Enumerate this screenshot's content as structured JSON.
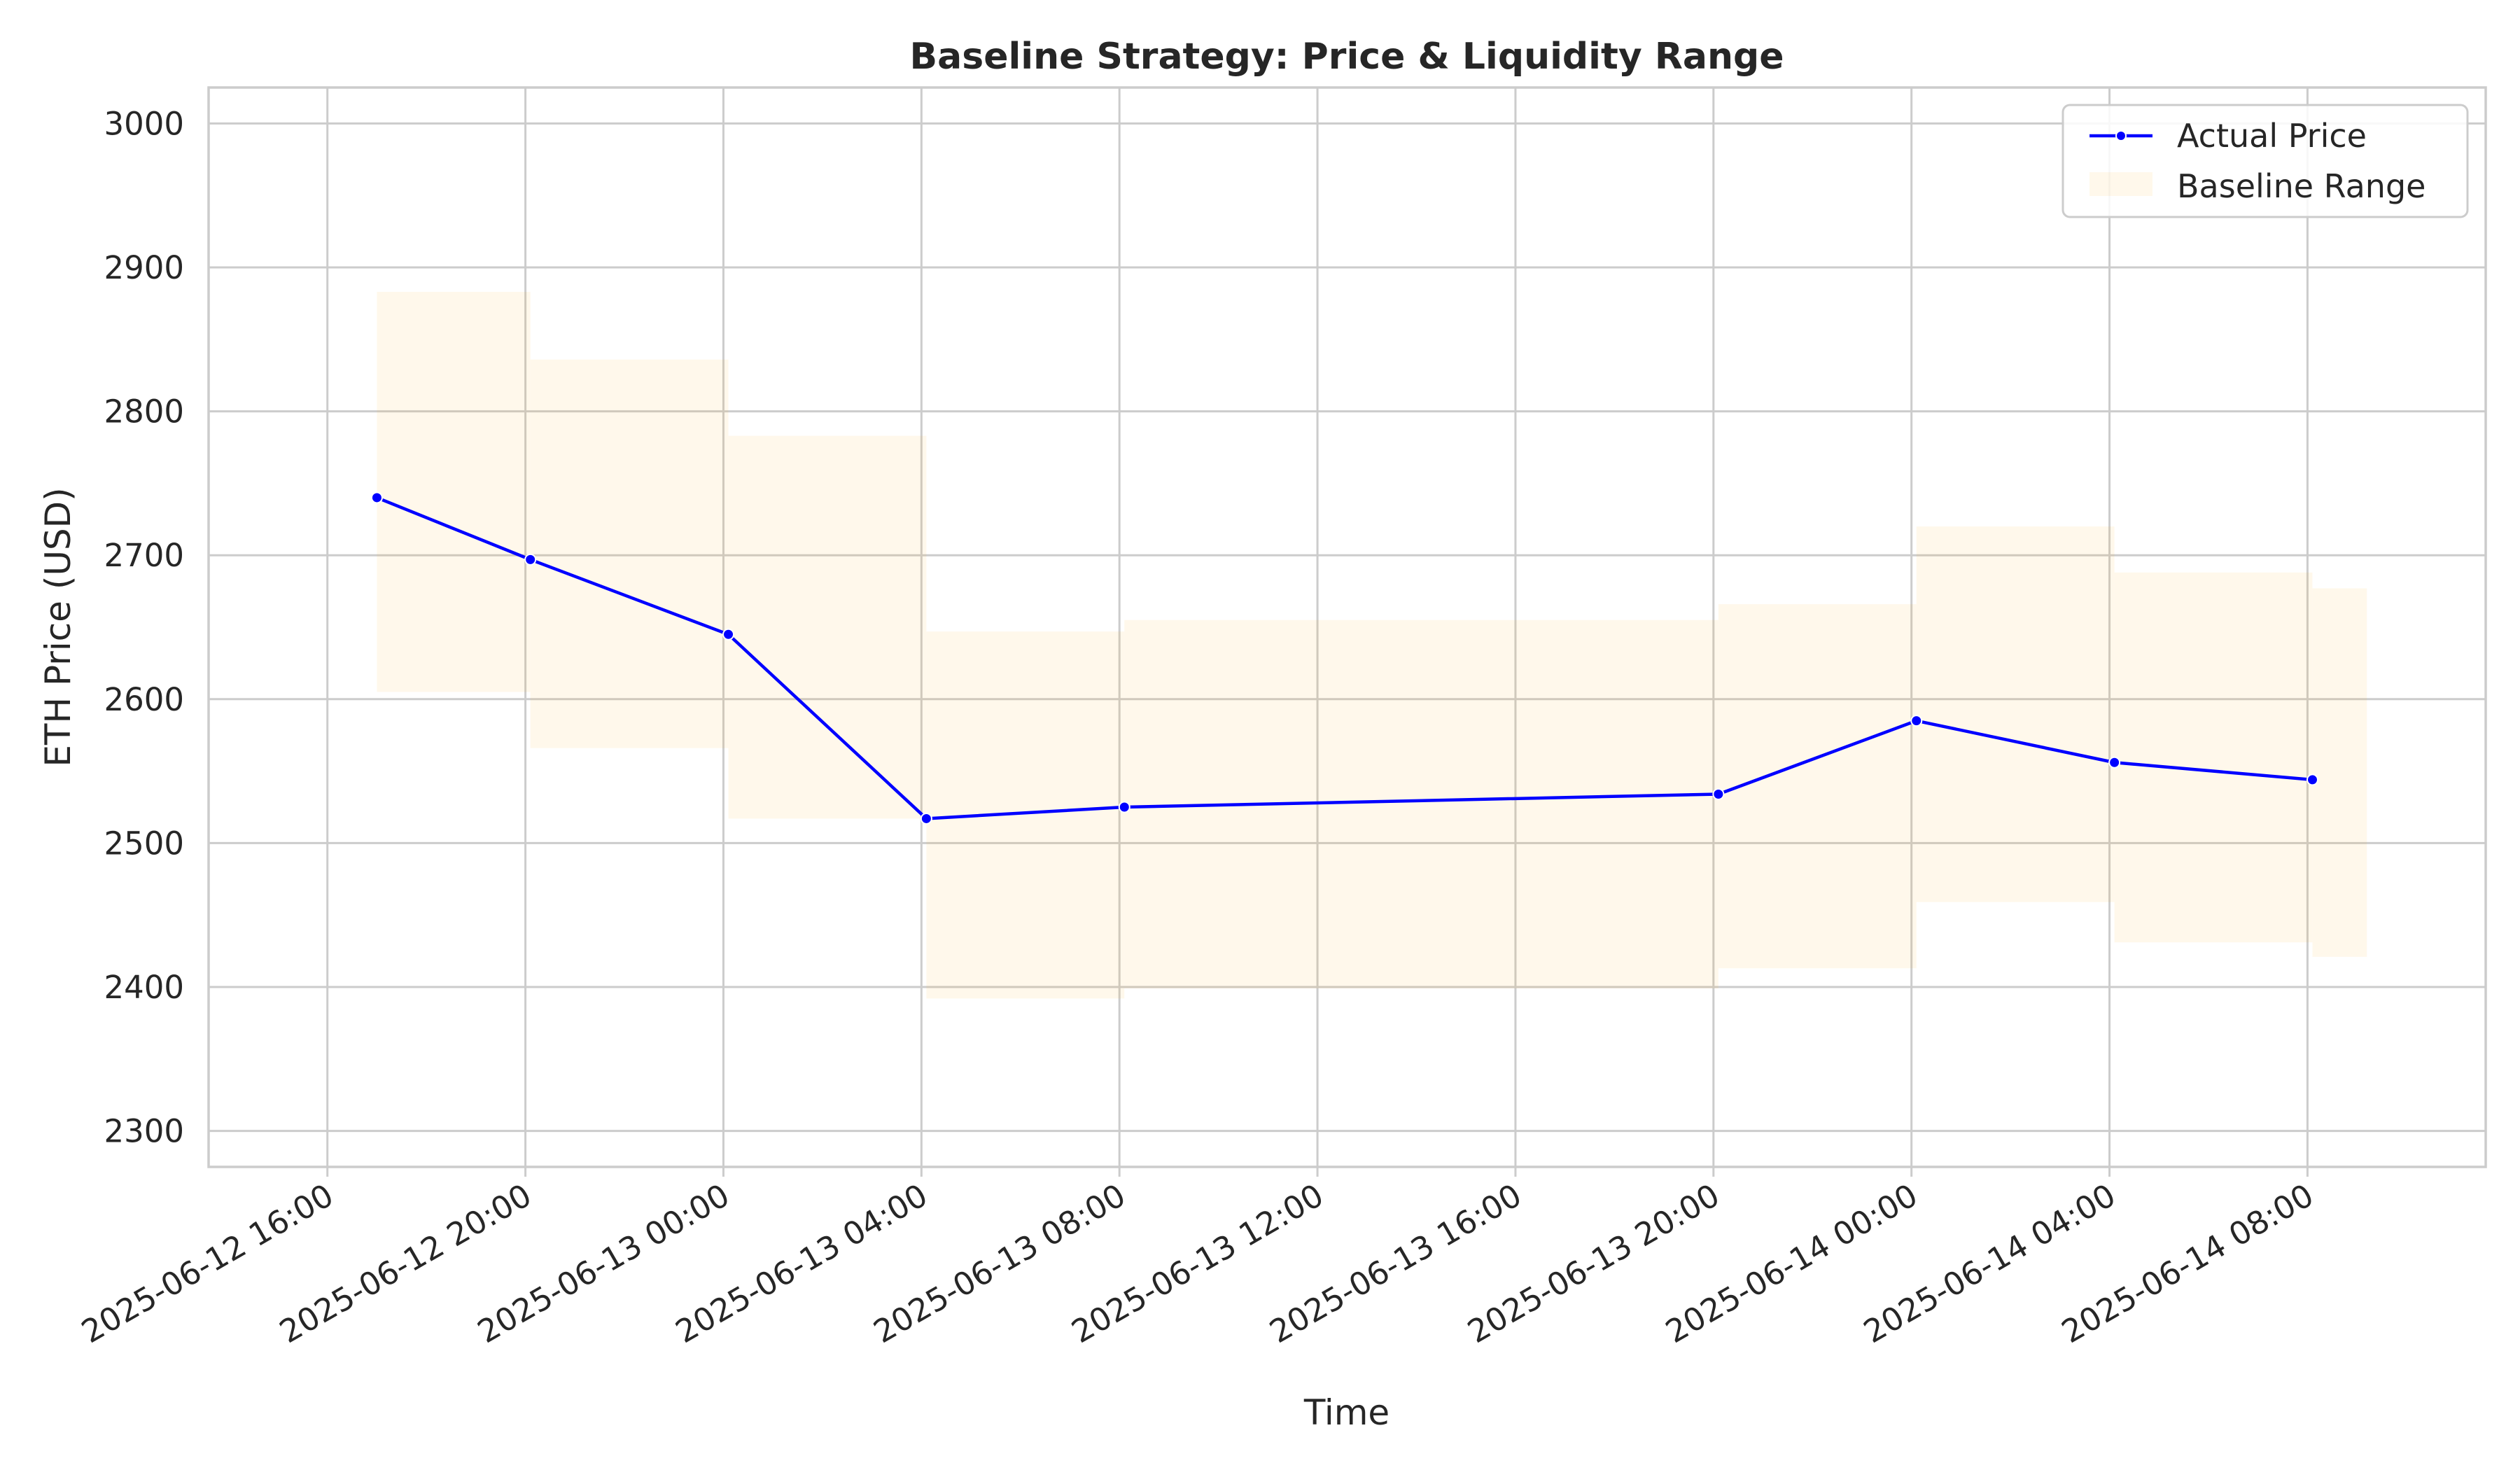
{
  "chart_data": {
    "type": "line",
    "title": "Baseline Strategy: Price & Liquidity Range",
    "xlabel": "Time",
    "ylabel": "ETH Price (USD)",
    "xlim": [
      "2025-06-12 13:36",
      "2025-06-14 11:36"
    ],
    "ylim": [
      2275,
      3025
    ],
    "grid": true,
    "legend_position": "top-right",
    "y_ticks": [
      2300,
      2400,
      2500,
      2600,
      2700,
      2800,
      2900,
      3000
    ],
    "x_ticks": [
      "2025-06-12 16:00",
      "2025-06-12 20:00",
      "2025-06-13 00:00",
      "2025-06-13 04:00",
      "2025-06-13 08:00",
      "2025-06-13 12:00",
      "2025-06-13 16:00",
      "2025-06-13 20:00",
      "2025-06-14 00:00",
      "2025-06-14 04:00",
      "2025-06-14 08:00"
    ],
    "series": [
      {
        "name": "Actual Price",
        "type": "line",
        "color": "#0000ff",
        "marker": "circle",
        "x": [
          "2025-06-12 17:00",
          "2025-06-12 20:06",
          "2025-06-13 00:06",
          "2025-06-13 04:06",
          "2025-06-13 08:06",
          "2025-06-13 20:06",
          "2025-06-14 00:06",
          "2025-06-14 04:06",
          "2025-06-14 08:06"
        ],
        "y": [
          2740,
          2697,
          2645,
          2517,
          2525,
          2534,
          2585,
          2556,
          2544
        ]
      },
      {
        "name": "Baseline Range",
        "type": "range",
        "color": "#ffa500",
        "opacity": 0.08,
        "ranges": [
          {
            "start": "2025-06-12 17:00",
            "end": "2025-06-12 20:06",
            "low": 2605,
            "high": 2883
          },
          {
            "start": "2025-06-12 20:06",
            "end": "2025-06-13 00:06",
            "low": 2566,
            "high": 2836
          },
          {
            "start": "2025-06-13 00:06",
            "end": "2025-06-13 04:06",
            "low": 2517,
            "high": 2783
          },
          {
            "start": "2025-06-13 04:06",
            "end": "2025-06-13 08:06",
            "low": 2392,
            "high": 2647
          },
          {
            "start": "2025-06-13 08:06",
            "end": "2025-06-13 20:06",
            "low": 2399,
            "high": 2655
          },
          {
            "start": "2025-06-13 20:06",
            "end": "2025-06-14 00:06",
            "low": 2413,
            "high": 2666
          },
          {
            "start": "2025-06-14 00:06",
            "end": "2025-06-14 04:06",
            "low": 2459,
            "high": 2720
          },
          {
            "start": "2025-06-14 04:06",
            "end": "2025-06-14 08:06",
            "low": 2431,
            "high": 2688
          },
          {
            "start": "2025-06-14 08:06",
            "end": "2025-06-14 09:12",
            "low": 2421,
            "high": 2677
          }
        ]
      }
    ]
  }
}
